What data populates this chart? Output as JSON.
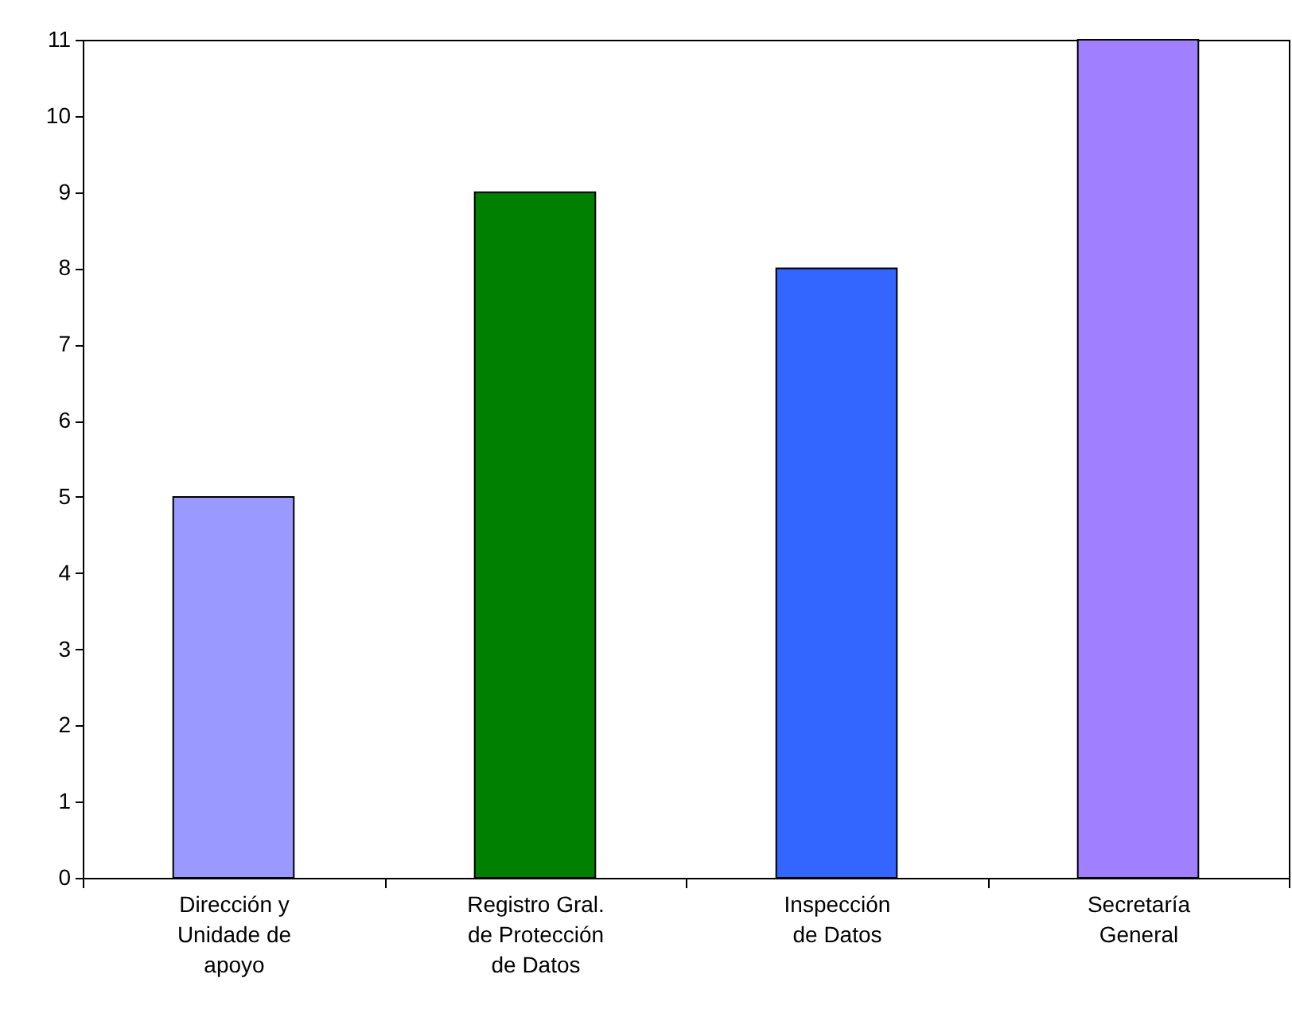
{
  "chart_data": {
    "type": "bar",
    "categories": [
      "Dirección y\nUnidade de\napoyo",
      "Registro Gral.\nde Protección\nde Datos",
      "Inspección\nde Datos",
      "Secretaría\nGeneral"
    ],
    "values": [
      5,
      9,
      8,
      11
    ],
    "colors": [
      "#9999ff",
      "#008000",
      "#3366ff",
      "#a080ff"
    ],
    "ylim": [
      0,
      11
    ],
    "yticks": [
      0,
      1,
      2,
      3,
      4,
      5,
      6,
      7,
      8,
      9,
      10,
      11
    ]
  }
}
